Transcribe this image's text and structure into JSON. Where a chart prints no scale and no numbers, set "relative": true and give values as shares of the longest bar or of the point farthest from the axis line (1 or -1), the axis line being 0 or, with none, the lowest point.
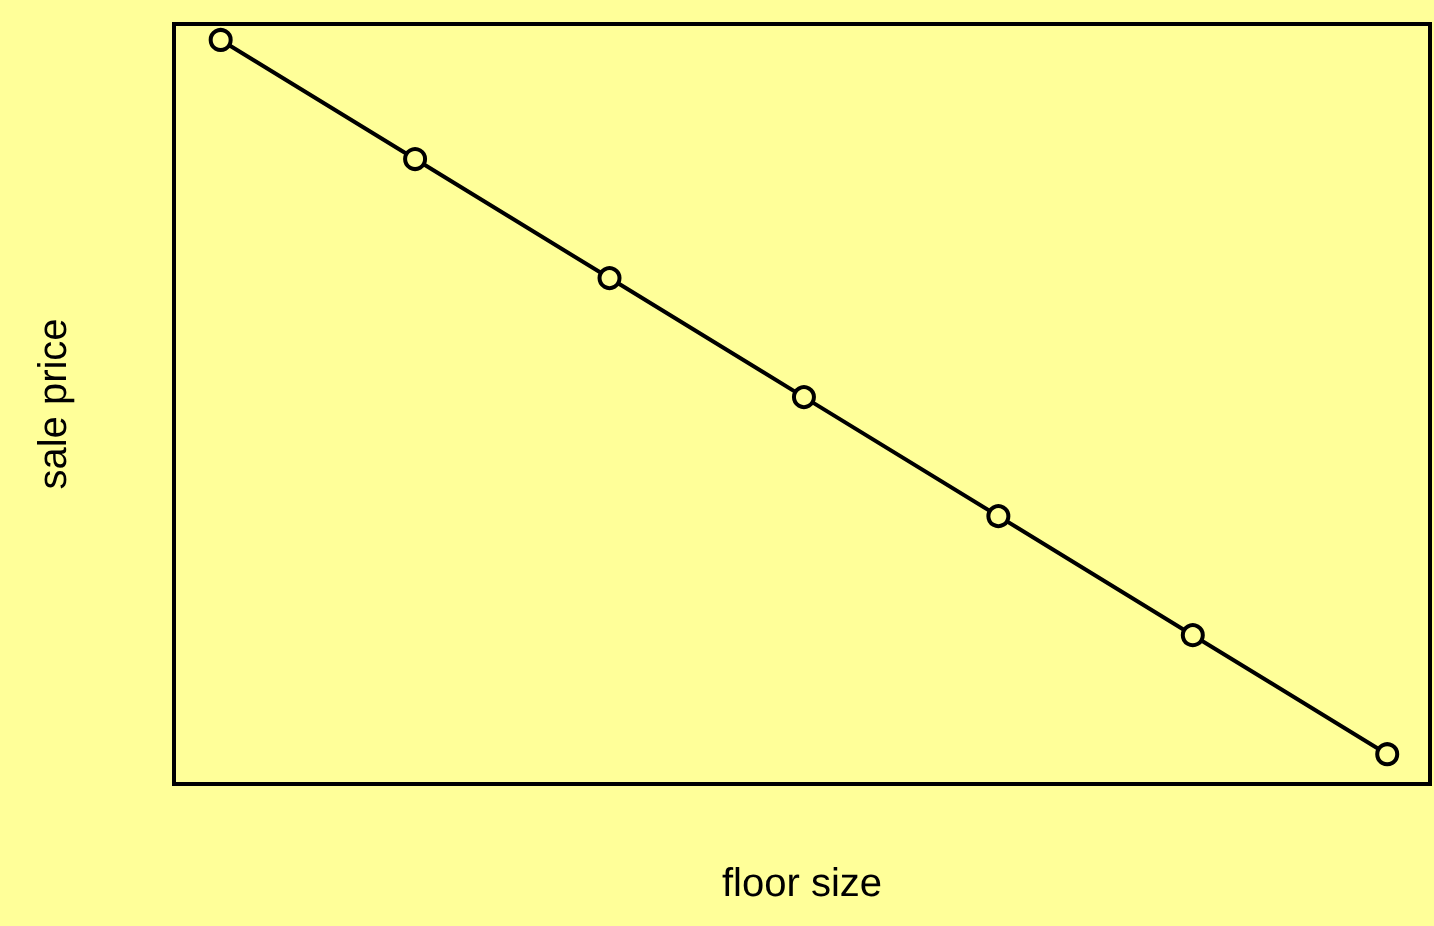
{
  "chart_data": {
    "type": "line",
    "xlabel": "floor size",
    "ylabel": "sale price",
    "relative": true,
    "categories": [
      null,
      null,
      null,
      null,
      null,
      null,
      null
    ],
    "series": [
      {
        "color": "#000000",
        "values": [
          1,
          0.84,
          0.68,
          0.52,
          0.36,
          0.2,
          0.04
        ]
      }
    ],
    "marker": "circle",
    "line_style": "solid"
  }
}
